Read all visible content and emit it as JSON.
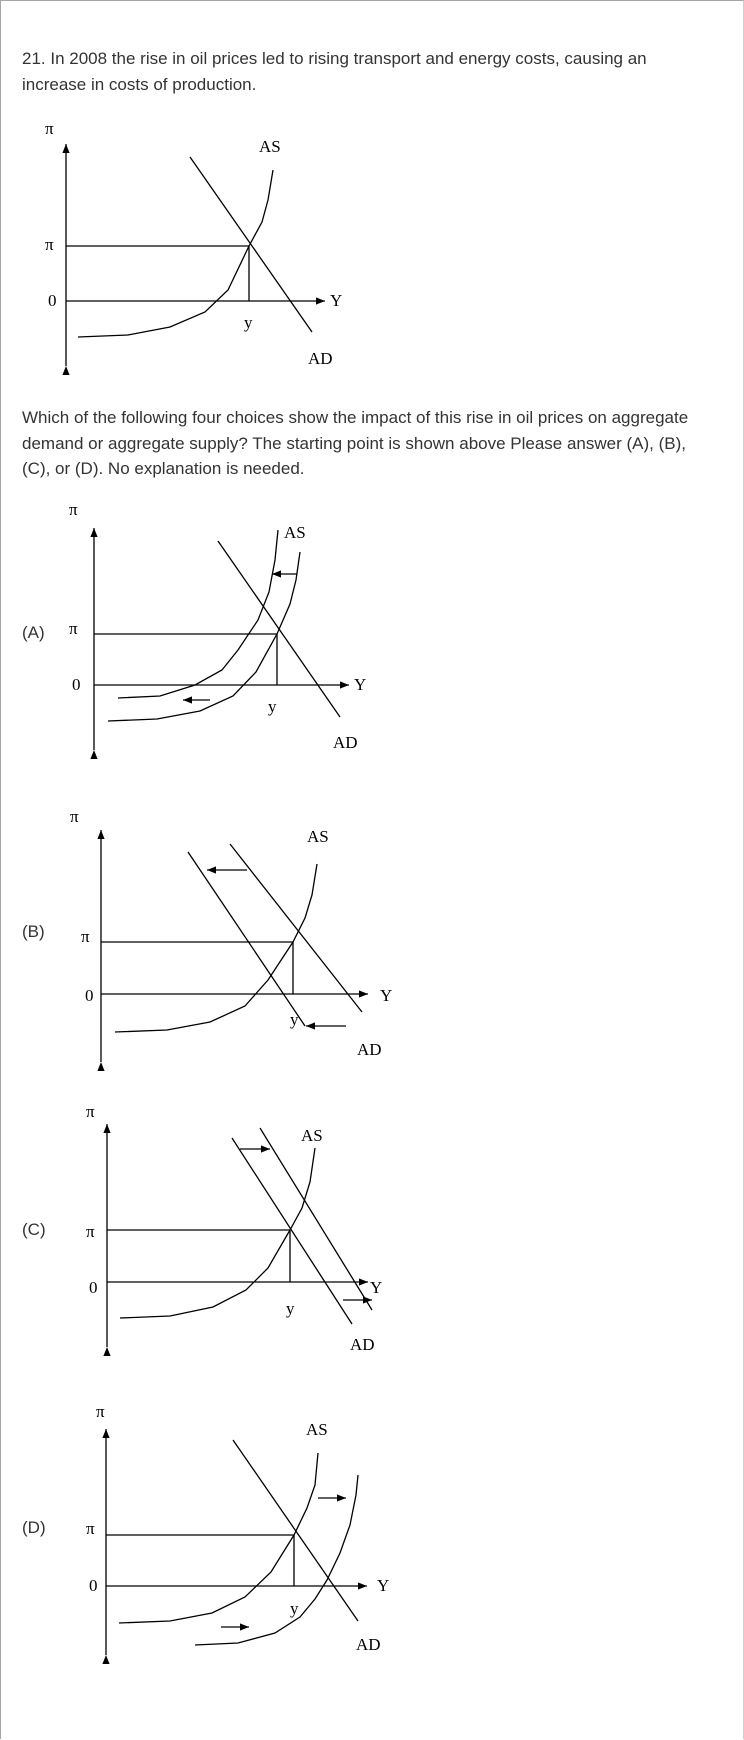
{
  "question": {
    "intro": "21.  In 2008 the rise in oil prices led to rising transport and energy costs, causing an increase in costs of production.",
    "prompt": "Which of the following four choices show the impact of this rise in oil prices on aggregate demand or aggregate supply?  The starting point is shown above  Please answer (A), (B), (C), or (D).  No explanation is needed."
  },
  "graph_labels": {
    "pi_axis": "π",
    "pi_level": "π",
    "zero": "0",
    "Y_axis": "Y",
    "y_output": "y",
    "AS": "AS",
    "AD": "AD"
  },
  "choices": [
    {
      "label": "(A)"
    },
    {
      "label": "(B)"
    },
    {
      "label": "(C)"
    },
    {
      "label": "(D)"
    }
  ]
}
